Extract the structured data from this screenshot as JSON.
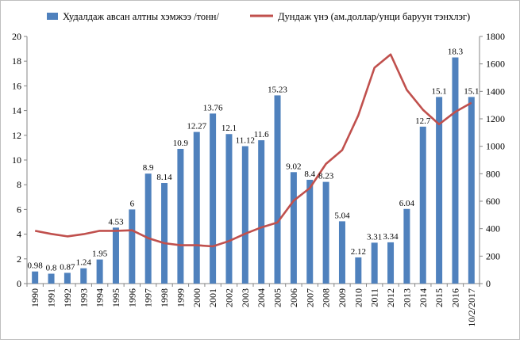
{
  "chart_data": {
    "type": "bar",
    "categories": [
      "1990",
      "1991",
      "1992",
      "1993",
      "1994",
      "1995",
      "1996",
      "1997",
      "1998",
      "1999",
      "2000",
      "2001",
      "2002",
      "2003",
      "2004",
      "2005",
      "2006",
      "2007",
      "2008",
      "2009",
      "2010",
      "2011",
      "2012",
      "2013",
      "2014",
      "2015",
      "2016",
      "10/2/2017"
    ],
    "series": [
      {
        "name": "Худалдаж  авсан алтны хэмжээ /тонн/",
        "type": "bar",
        "axis": "left",
        "color": "#4f81bd",
        "values": [
          0.98,
          0.8,
          0.87,
          1.24,
          1.95,
          4.53,
          6,
          8.9,
          8.14,
          10.9,
          12.27,
          13.76,
          12.1,
          11.12,
          11.6,
          15.23,
          9.02,
          8.4,
          8.23,
          5.04,
          2.12,
          3.31,
          3.34,
          6.04,
          12.7,
          15.1,
          18.3,
          15.1
        ],
        "labels": [
          "0.98",
          "0.8",
          "0.87",
          "1.24",
          "1.95",
          "4.53",
          "6",
          "8.9",
          "8.14",
          "10.9",
          "12.27",
          "13.76",
          "12.1",
          "11.12",
          "11.6",
          "15.23",
          "9.02",
          "8.4",
          "8.23",
          "5.04",
          "2.12",
          "3.31",
          "3.34",
          "6.04",
          "12.7",
          "15.1",
          "18.3",
          "15.1"
        ]
      },
      {
        "name": "Дундаж үнэ (ам.доллар/унци баруун тэнхлэг)",
        "type": "line",
        "axis": "right",
        "color": "#c0504d",
        "values": [
          384,
          362,
          344,
          360,
          384,
          384,
          388,
          331,
          294,
          279,
          279,
          271,
          310,
          363,
          409,
          445,
          604,
          696,
          872,
          972,
          1225,
          1572,
          1669,
          1411,
          1266,
          1160,
          1251,
          1317
        ]
      }
    ],
    "left_axis": {
      "min": 0,
      "max": 20,
      "step": 2,
      "ticks": [
        "0",
        "2",
        "4",
        "6",
        "8",
        "10",
        "12",
        "14",
        "16",
        "18",
        "20"
      ]
    },
    "right_axis": {
      "min": 0,
      "max": 1800,
      "step": 200,
      "ticks": [
        "0",
        "200",
        "400",
        "600",
        "800",
        "1000",
        "1200",
        "1400",
        "1600",
        "1800"
      ]
    },
    "grid": false,
    "legend": "top"
  }
}
